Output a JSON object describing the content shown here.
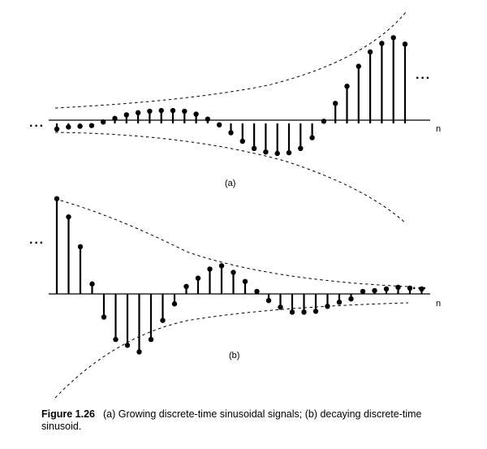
{
  "figure": {
    "panel_a": {
      "label": "(a)",
      "axis_label": "n",
      "left_ellipsis": "···",
      "right_ellipsis": "···",
      "samples": [
        -0.08,
        -0.05,
        -0.04,
        -0.03,
        0.02,
        0.07,
        0.12,
        0.15,
        0.17,
        0.18,
        0.18,
        0.17,
        0.13,
        0.06,
        -0.02,
        -0.13,
        -0.25,
        -0.35,
        -0.4,
        -0.42,
        -0.41,
        -0.35,
        -0.2,
        0.03,
        0.28,
        0.52,
        0.8,
        1.0,
        1.12,
        1.2,
        1.11
      ]
    },
    "panel_b": {
      "label": "(b)",
      "axis_label": "n",
      "left_ellipsis": "···",
      "right_ellipsis": "···",
      "samples": [
        1.15,
        0.93,
        0.57,
        0.12,
        -0.28,
        -0.55,
        -0.62,
        -0.7,
        -0.55,
        -0.32,
        -0.12,
        0.09,
        0.19,
        0.3,
        0.34,
        0.26,
        0.15,
        0.03,
        -0.08,
        -0.16,
        -0.22,
        -0.22,
        -0.21,
        -0.15,
        -0.1,
        -0.06,
        0.03,
        0.04,
        0.06,
        0.08,
        0.07,
        0.06
      ]
    }
  },
  "caption": {
    "figure_label": "Figure 1.26",
    "text": "(a) Growing discrete-time sinusoidal signals; (b) decaying discrete-time sinusoid."
  }
}
